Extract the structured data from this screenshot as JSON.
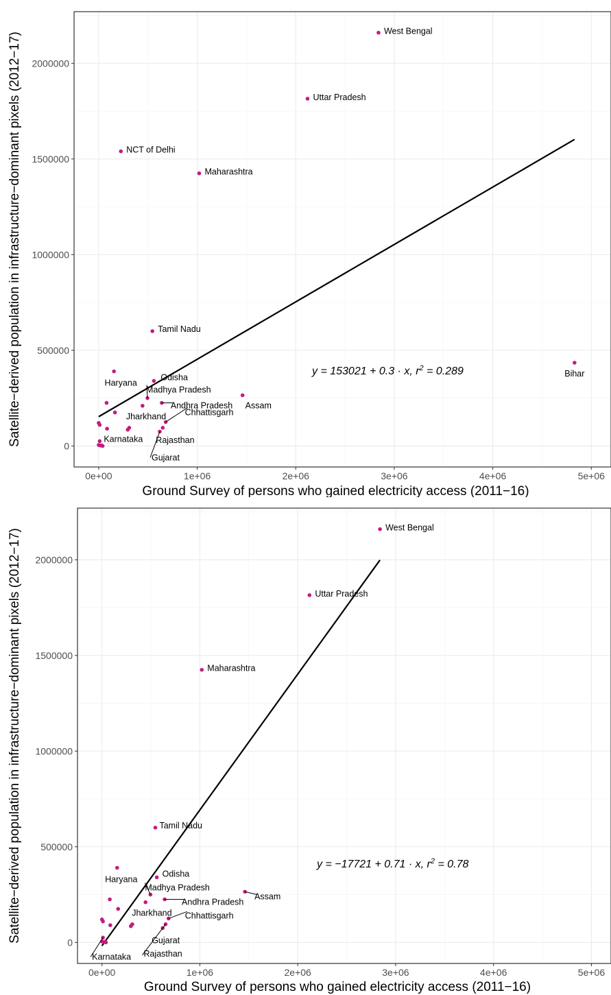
{
  "chart_data": [
    {
      "type": "scatter",
      "xlabel": "Ground Survey of persons who gained electricity access (2011−16)",
      "ylabel": "Satellite−derived population in infrastructure−dominant pixels (2012−17)",
      "xlim": [
        -250000,
        5200000
      ],
      "ylim": [
        -110000,
        2270000
      ],
      "x_ticks": [
        0,
        1000000,
        2000000,
        3000000,
        4000000,
        5000000
      ],
      "x_tick_labels": [
        "0e+00",
        "1e+06",
        "2e+06",
        "3e+06",
        "4e+06",
        "5e+06"
      ],
      "y_ticks": [
        0,
        500000,
        1000000,
        1500000,
        2000000
      ],
      "y_tick_labels": [
        "0",
        "500000",
        "1000000",
        "1500000",
        "2000000"
      ],
      "grid": true,
      "point_color": "#C51B7D",
      "fit": {
        "intercept": 153021,
        "slope": 0.3,
        "x_range": [
          0,
          4830000
        ],
        "equation": "y = 153021 + 0.3 · x,  r² = 0.289"
      },
      "points": [
        {
          "x": 2840000,
          "y": 2160000,
          "label": "West Bengal"
        },
        {
          "x": 2120000,
          "y": 1815000,
          "label": "Uttar Pradesh"
        },
        {
          "x": 225000,
          "y": 1540000,
          "label": "NCT of Delhi"
        },
        {
          "x": 1020000,
          "y": 1425000,
          "label": "Maharashtra"
        },
        {
          "x": 545000,
          "y": 600000,
          "label": "Tamil Nadu"
        },
        {
          "x": 4830000,
          "y": 435000,
          "label": "Bihar"
        },
        {
          "x": 155000,
          "y": 390000,
          "label": "Haryana"
        },
        {
          "x": 560000,
          "y": 340000,
          "label": "Odisha"
        },
        {
          "x": 1460000,
          "y": 265000,
          "label": "Assam"
        },
        {
          "x": 495000,
          "y": 250000,
          "label": "Madhya Pradesh"
        },
        {
          "x": 640000,
          "y": 225000,
          "label": "Andhra Pradesh"
        },
        {
          "x": 445000,
          "y": 210000,
          "label": "Jharkhand"
        },
        {
          "x": 680000,
          "y": 125000,
          "label": "Chhattisgarh"
        },
        {
          "x": 650000,
          "y": 95000,
          "label": "Rajasthan"
        },
        {
          "x": 620000,
          "y": 75000,
          "label": "Gujarat"
        },
        {
          "x": 10000,
          "y": 25000,
          "label": "Karnataka"
        },
        {
          "x": 80000,
          "y": 225000,
          "label": ""
        },
        {
          "x": 165000,
          "y": 175000,
          "label": ""
        },
        {
          "x": 0,
          "y": 120000,
          "label": ""
        },
        {
          "x": 10000,
          "y": 110000,
          "label": ""
        },
        {
          "x": 85000,
          "y": 90000,
          "label": ""
        },
        {
          "x": 310000,
          "y": 95000,
          "label": ""
        },
        {
          "x": 295000,
          "y": 85000,
          "label": ""
        },
        {
          "x": 0,
          "y": 5000,
          "label": ""
        },
        {
          "x": 20000,
          "y": 2000,
          "label": ""
        },
        {
          "x": 40000,
          "y": 0,
          "label": ""
        },
        {
          "x": 30000,
          "y": 3000,
          "label": ""
        }
      ]
    },
    {
      "type": "scatter",
      "xlabel": "Ground Survey of persons who gained electricity access (2011−16)",
      "ylabel": "Satellite−derived population in infrastructure−dominant pixels (2012−17)",
      "xlim": [
        -250000,
        5200000
      ],
      "ylim": [
        -110000,
        2270000
      ],
      "x_ticks": [
        0,
        1000000,
        2000000,
        3000000,
        4000000,
        5000000
      ],
      "x_tick_labels": [
        "0e+00",
        "1e+06",
        "2e+06",
        "3e+06",
        "4e+06",
        "5e+06"
      ],
      "y_ticks": [
        0,
        500000,
        1000000,
        1500000,
        2000000
      ],
      "y_tick_labels": [
        "0",
        "500000",
        "1000000",
        "1500000",
        "2000000"
      ],
      "grid": true,
      "point_color": "#C51B7D",
      "fit": {
        "intercept": -17721,
        "slope": 0.71,
        "x_range": [
          0,
          2840000
        ],
        "equation": "y = −17721 + 0.71 · x,  r² = 0.78"
      },
      "points": [
        {
          "x": 2840000,
          "y": 2160000,
          "label": "West Bengal"
        },
        {
          "x": 2120000,
          "y": 1815000,
          "label": "Uttar Pradesh"
        },
        {
          "x": 1020000,
          "y": 1425000,
          "label": "Maharashtra"
        },
        {
          "x": 545000,
          "y": 600000,
          "label": "Tamil Nadu"
        },
        {
          "x": 155000,
          "y": 390000,
          "label": "Haryana"
        },
        {
          "x": 560000,
          "y": 340000,
          "label": "Odisha"
        },
        {
          "x": 1460000,
          "y": 265000,
          "label": "Assam"
        },
        {
          "x": 495000,
          "y": 250000,
          "label": "Madhya Pradesh"
        },
        {
          "x": 640000,
          "y": 225000,
          "label": "Andhra Pradesh"
        },
        {
          "x": 445000,
          "y": 210000,
          "label": "Jharkhand"
        },
        {
          "x": 680000,
          "y": 125000,
          "label": "Chhattisgarh"
        },
        {
          "x": 620000,
          "y": 75000,
          "label": "Gujarat"
        },
        {
          "x": 650000,
          "y": 95000,
          "label": "Rajasthan"
        },
        {
          "x": 10000,
          "y": 25000,
          "label": "Karnataka"
        },
        {
          "x": 80000,
          "y": 225000,
          "label": ""
        },
        {
          "x": 165000,
          "y": 175000,
          "label": ""
        },
        {
          "x": 0,
          "y": 120000,
          "label": ""
        },
        {
          "x": 10000,
          "y": 110000,
          "label": ""
        },
        {
          "x": 85000,
          "y": 90000,
          "label": ""
        },
        {
          "x": 310000,
          "y": 95000,
          "label": ""
        },
        {
          "x": 295000,
          "y": 85000,
          "label": ""
        },
        {
          "x": 0,
          "y": 5000,
          "label": ""
        },
        {
          "x": 20000,
          "y": 2000,
          "label": ""
        },
        {
          "x": 40000,
          "y": 0,
          "label": ""
        },
        {
          "x": 30000,
          "y": 3000,
          "label": ""
        }
      ]
    }
  ]
}
